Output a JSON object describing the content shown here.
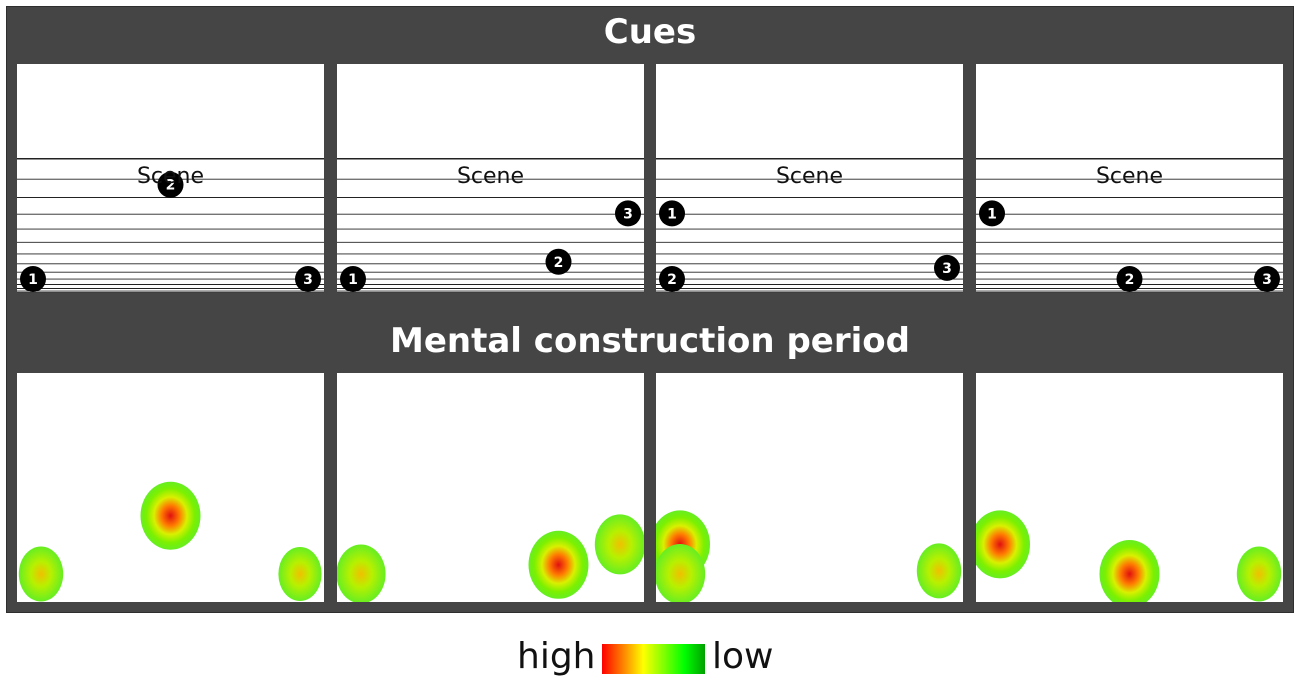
{
  "cues_title": "Cues",
  "mental_title": "Mental construction period",
  "scene_label": "Scene",
  "cue_numbers": [
    "1",
    "2",
    "3"
  ],
  "legend": {
    "high_label": "high",
    "low_label": "low",
    "gradient_colors": [
      "#ff0000",
      "#ff8000",
      "#ffff00",
      "#80ff00",
      "#00ff00",
      "#00a000"
    ]
  },
  "panels": [
    {
      "cues": [
        {
          "n": "1",
          "gx": 0.08,
          "gy": 0.95
        },
        {
          "n": "2",
          "gx": 0.5,
          "gy": 0.1
        },
        {
          "n": "3",
          "gx": 0.92,
          "gy": 0.95
        }
      ]
    },
    {
      "cues": [
        {
          "n": "1",
          "gx": 0.1,
          "gy": 0.9
        },
        {
          "n": "2",
          "gx": 0.6,
          "gy": 0.5
        },
        {
          "n": "3",
          "gx": 0.85,
          "gy": 0.22
        }
      ]
    },
    {
      "cues": [
        {
          "n": "1",
          "gx": 0.1,
          "gy": 0.22
        },
        {
          "n": "2",
          "gx": 0.25,
          "gy": 0.9
        },
        {
          "n": "3",
          "gx": 0.85,
          "gy": 0.55
        }
      ]
    },
    {
      "cues": [
        {
          "n": "1",
          "gx": 0.08,
          "gy": 0.22
        },
        {
          "n": "2",
          "gx": 0.5,
          "gy": 0.68
        },
        {
          "n": "3",
          "gx": 0.95,
          "gy": 0.95
        }
      ]
    }
  ],
  "heatmaps": [
    [
      {
        "gx": 0.5,
        "gy": 0.1,
        "i": 1.0
      },
      {
        "gx": 0.08,
        "gy": 0.95,
        "i": 0.35
      },
      {
        "gx": 0.92,
        "gy": 0.95,
        "i": 0.3
      }
    ],
    [
      {
        "gx": 0.6,
        "gy": 0.5,
        "i": 1.0
      },
      {
        "gx": 0.85,
        "gy": 0.22,
        "i": 0.6
      },
      {
        "gx": 0.1,
        "gy": 0.9,
        "i": 0.55
      }
    ],
    [
      {
        "gx": 0.1,
        "gy": 0.22,
        "i": 1.0
      },
      {
        "gx": 0.25,
        "gy": 0.9,
        "i": 0.6
      },
      {
        "gx": 0.85,
        "gy": 0.55,
        "i": 0.35
      }
    ],
    [
      {
        "gx": 0.08,
        "gy": 0.22,
        "i": 1.0
      },
      {
        "gx": 0.5,
        "gy": 0.68,
        "i": 1.0
      },
      {
        "gx": 0.95,
        "gy": 0.95,
        "i": 0.35
      }
    ]
  ]
}
